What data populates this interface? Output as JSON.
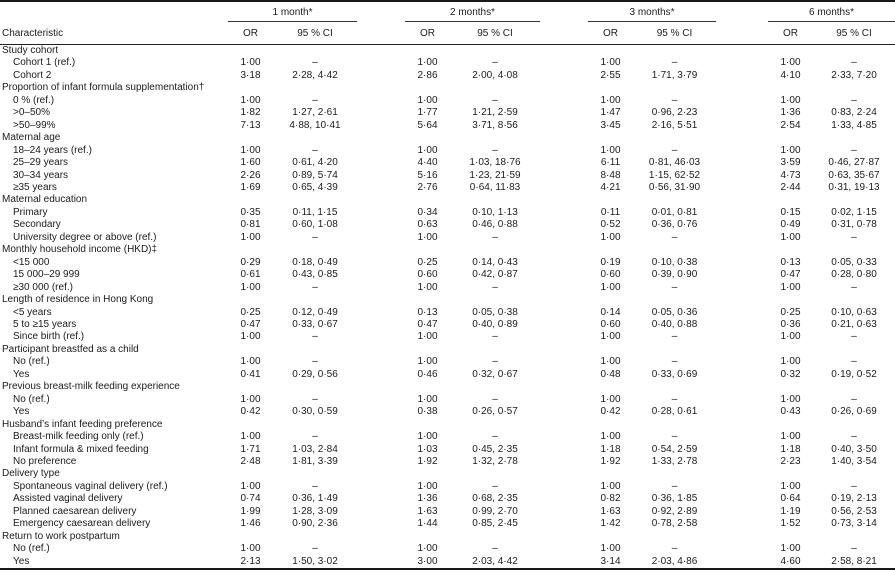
{
  "page": {
    "background": "#ffffff",
    "text_color": "#1c1c1c",
    "rule_color": "#1a1a1a"
  },
  "table": {
    "characteristic_header": "Characteristic",
    "groups": [
      {
        "label": "1 month*"
      },
      {
        "label": "2 months*"
      },
      {
        "label": "3 months*"
      },
      {
        "label": "6 months*"
      }
    ],
    "subheaders": {
      "or": "OR",
      "ci": "95 % CI"
    },
    "rows": [
      {
        "type": "group",
        "label": "Study cohort"
      },
      {
        "type": "item",
        "label": "Cohort 1 (ref.)",
        "values": [
          "1·00",
          "–",
          "1·00",
          "–",
          "1·00",
          "–",
          "1·00",
          "–"
        ]
      },
      {
        "type": "item",
        "label": "Cohort 2",
        "values": [
          "3·18",
          "2·28, 4·42",
          "2·86",
          "2·00, 4·08",
          "2·55",
          "1·71, 3·79",
          "4·10",
          "2·33, 7·20"
        ]
      },
      {
        "type": "group",
        "label": "Proportion of infant formula supplementation†"
      },
      {
        "type": "item",
        "label": "0 % (ref.)",
        "values": [
          "1·00",
          "–",
          "1·00",
          "–",
          "1·00",
          "–",
          "1·00",
          "–"
        ]
      },
      {
        "type": "item",
        "label": ">0–50%",
        "values": [
          "1·82",
          "1·27, 2·61",
          "1·77",
          "1·21, 2·59",
          "1·47",
          "0·96, 2·23",
          "1·36",
          "0·83, 2·24"
        ]
      },
      {
        "type": "item",
        "label": ">50–99%",
        "values": [
          "7·13",
          "4·88, 10·41",
          "5·64",
          "3·71, 8·56",
          "3·45",
          "2·16, 5·51",
          "2·54",
          "1·33, 4·85"
        ]
      },
      {
        "type": "group",
        "label": "Maternal age"
      },
      {
        "type": "item",
        "label": "18–24 years (ref.)",
        "values": [
          "1·00",
          "–",
          "1·00",
          "–",
          "1·00",
          "–",
          "1·00",
          "–"
        ]
      },
      {
        "type": "item",
        "label": "25–29 years",
        "values": [
          "1·60",
          "0·61, 4·20",
          "4·40",
          "1·03, 18·76",
          "6·11",
          "0·81, 46·03",
          "3·59",
          "0·46, 27·87"
        ]
      },
      {
        "type": "item",
        "label": "30–34 years",
        "values": [
          "2·26",
          "0·89, 5·74",
          "5·16",
          "1·23, 21·59",
          "8·48",
          "1·15, 62·52",
          "4·73",
          "0·63, 35·67"
        ]
      },
      {
        "type": "item",
        "label": "≥35 years",
        "values": [
          "1·69",
          "0·65, 4·39",
          "2·76",
          "0·64, 11·83",
          "4·21",
          "0·56, 31·90",
          "2·44",
          "0·31, 19·13"
        ]
      },
      {
        "type": "group",
        "label": "Maternal education"
      },
      {
        "type": "item",
        "label": "Primary",
        "values": [
          "0·35",
          "0·11, 1·15",
          "0·34",
          "0·10, 1·13",
          "0·11",
          "0·01, 0·81",
          "0·15",
          "0·02, 1·15"
        ]
      },
      {
        "type": "item",
        "label": "Secondary",
        "values": [
          "0·81",
          "0·60, 1·08",
          "0·63",
          "0·46, 0·88",
          "0·52",
          "0·36, 0·76",
          "0·49",
          "0·31, 0·78"
        ]
      },
      {
        "type": "item",
        "label": "University degree or above (ref.)",
        "values": [
          "1·00",
          "–",
          "1·00",
          "–",
          "1·00",
          "–",
          "1·00",
          "–"
        ]
      },
      {
        "type": "group",
        "label": "Monthly household income (HKD)‡"
      },
      {
        "type": "item",
        "label": "<15 000",
        "values": [
          "0·29",
          "0·18, 0·49",
          "0·25",
          "0·14, 0·43",
          "0·19",
          "0·10, 0·38",
          "0·13",
          "0·05, 0·33"
        ]
      },
      {
        "type": "item",
        "label": "15 000–29 999",
        "values": [
          "0·61",
          "0·43, 0·85",
          "0·60",
          "0·42, 0·87",
          "0·60",
          "0·39, 0·90",
          "0·47",
          "0·28, 0·80"
        ]
      },
      {
        "type": "item",
        "label": "≥30 000 (ref.)",
        "values": [
          "1·00",
          "–",
          "1·00",
          "–",
          "1·00",
          "–",
          "1·00",
          "–"
        ]
      },
      {
        "type": "group",
        "label": "Length of residence in Hong Kong"
      },
      {
        "type": "item",
        "label": "<5 years",
        "values": [
          "0·25",
          "0·12, 0·49",
          "0·13",
          "0·05, 0·38",
          "0·14",
          "0·05, 0·36",
          "0·25",
          "0·10, 0·63"
        ]
      },
      {
        "type": "item",
        "label": "5 to ≥15 years",
        "values": [
          "0·47",
          "0·33, 0·67",
          "0·47",
          "0·40, 0·89",
          "0·60",
          "0·40, 0·88",
          "0·36",
          "0·21, 0·63"
        ]
      },
      {
        "type": "item",
        "label": "Since birth (ref.)",
        "values": [
          "1·00",
          "–",
          "1·00",
          "–",
          "1·00",
          "–",
          "1·00",
          "–"
        ]
      },
      {
        "type": "group",
        "label": "Participant breastfed as a child"
      },
      {
        "type": "item",
        "label": "No (ref.)",
        "values": [
          "1·00",
          "–",
          "1·00",
          "–",
          "1·00",
          "–",
          "1·00",
          "–"
        ]
      },
      {
        "type": "item",
        "label": "Yes",
        "values": [
          "0·41",
          "0·29, 0·56",
          "0·46",
          "0·32, 0·67",
          "0·48",
          "0·33, 0·69",
          "0·32",
          "0·19, 0·52"
        ]
      },
      {
        "type": "group",
        "label": "Previous breast-milk feeding experience"
      },
      {
        "type": "item",
        "label": "No (ref.)",
        "values": [
          "1·00",
          "–",
          "1·00",
          "–",
          "1·00",
          "–",
          "1·00",
          "–"
        ]
      },
      {
        "type": "item",
        "label": "Yes",
        "values": [
          "0·42",
          "0·30, 0·59",
          "0·38",
          "0·26, 0·57",
          "0·42",
          "0·28, 0·61",
          "0·43",
          "0·26, 0·69"
        ]
      },
      {
        "type": "group",
        "label": "Husband’s infant feeding preference"
      },
      {
        "type": "item",
        "label": "Breast-milk feeding only (ref.)",
        "values": [
          "1·00",
          "–",
          "1·00",
          "–",
          "1·00",
          "–",
          "1·00",
          "–"
        ]
      },
      {
        "type": "item",
        "label": "Infant formula & mixed feeding",
        "values": [
          "1·71",
          "1·03, 2·84",
          "1·03",
          "0·45, 2·35",
          "1·18",
          "0·54, 2·59",
          "1·18",
          "0·40, 3·50"
        ]
      },
      {
        "type": "item",
        "label": "No preference",
        "values": [
          "2·48",
          "1·81, 3·39",
          "1·92",
          "1·32, 2·78",
          "1·92",
          "1·33, 2·78",
          "2·23",
          "1·40, 3·54"
        ]
      },
      {
        "type": "group",
        "label": "Delivery type"
      },
      {
        "type": "item",
        "label": "Spontaneous vaginal delivery (ref.)",
        "values": [
          "1·00",
          "–",
          "1·00",
          "–",
          "1·00",
          "–",
          "1·00",
          "–"
        ]
      },
      {
        "type": "item",
        "label": "Assisted vaginal delivery",
        "values": [
          "0·74",
          "0·36, 1·49",
          "1·36",
          "0·68, 2·35",
          "0·82",
          "0·36, 1·85",
          "0·64",
          "0·19, 2·13"
        ]
      },
      {
        "type": "item",
        "label": "Planned caesarean delivery",
        "values": [
          "1·99",
          "1·28, 3·09",
          "1·63",
          "0·99, 2·70",
          "1·63",
          "0·92, 2·89",
          "1·19",
          "0·56, 2·53"
        ]
      },
      {
        "type": "item",
        "label": "Emergency caesarean delivery",
        "values": [
          "1·46",
          "0·90, 2·36",
          "1·44",
          "0·85, 2·45",
          "1·42",
          "0·78, 2·58",
          "1·52",
          "0·73, 3·14"
        ]
      },
      {
        "type": "group",
        "label": "Return to work postpartum"
      },
      {
        "type": "item",
        "label": "No (ref.)",
        "values": [
          "1·00",
          "–",
          "1·00",
          "–",
          "1·00",
          "–",
          "1·00",
          "–"
        ]
      },
      {
        "type": "item",
        "label": "Yes",
        "values": [
          "2·13",
          "1·50, 3·02",
          "3·00",
          "2·03, 4·42",
          "3·14",
          "2·03, 4·86",
          "4·60",
          "2·58, 8·21"
        ]
      }
    ]
  }
}
